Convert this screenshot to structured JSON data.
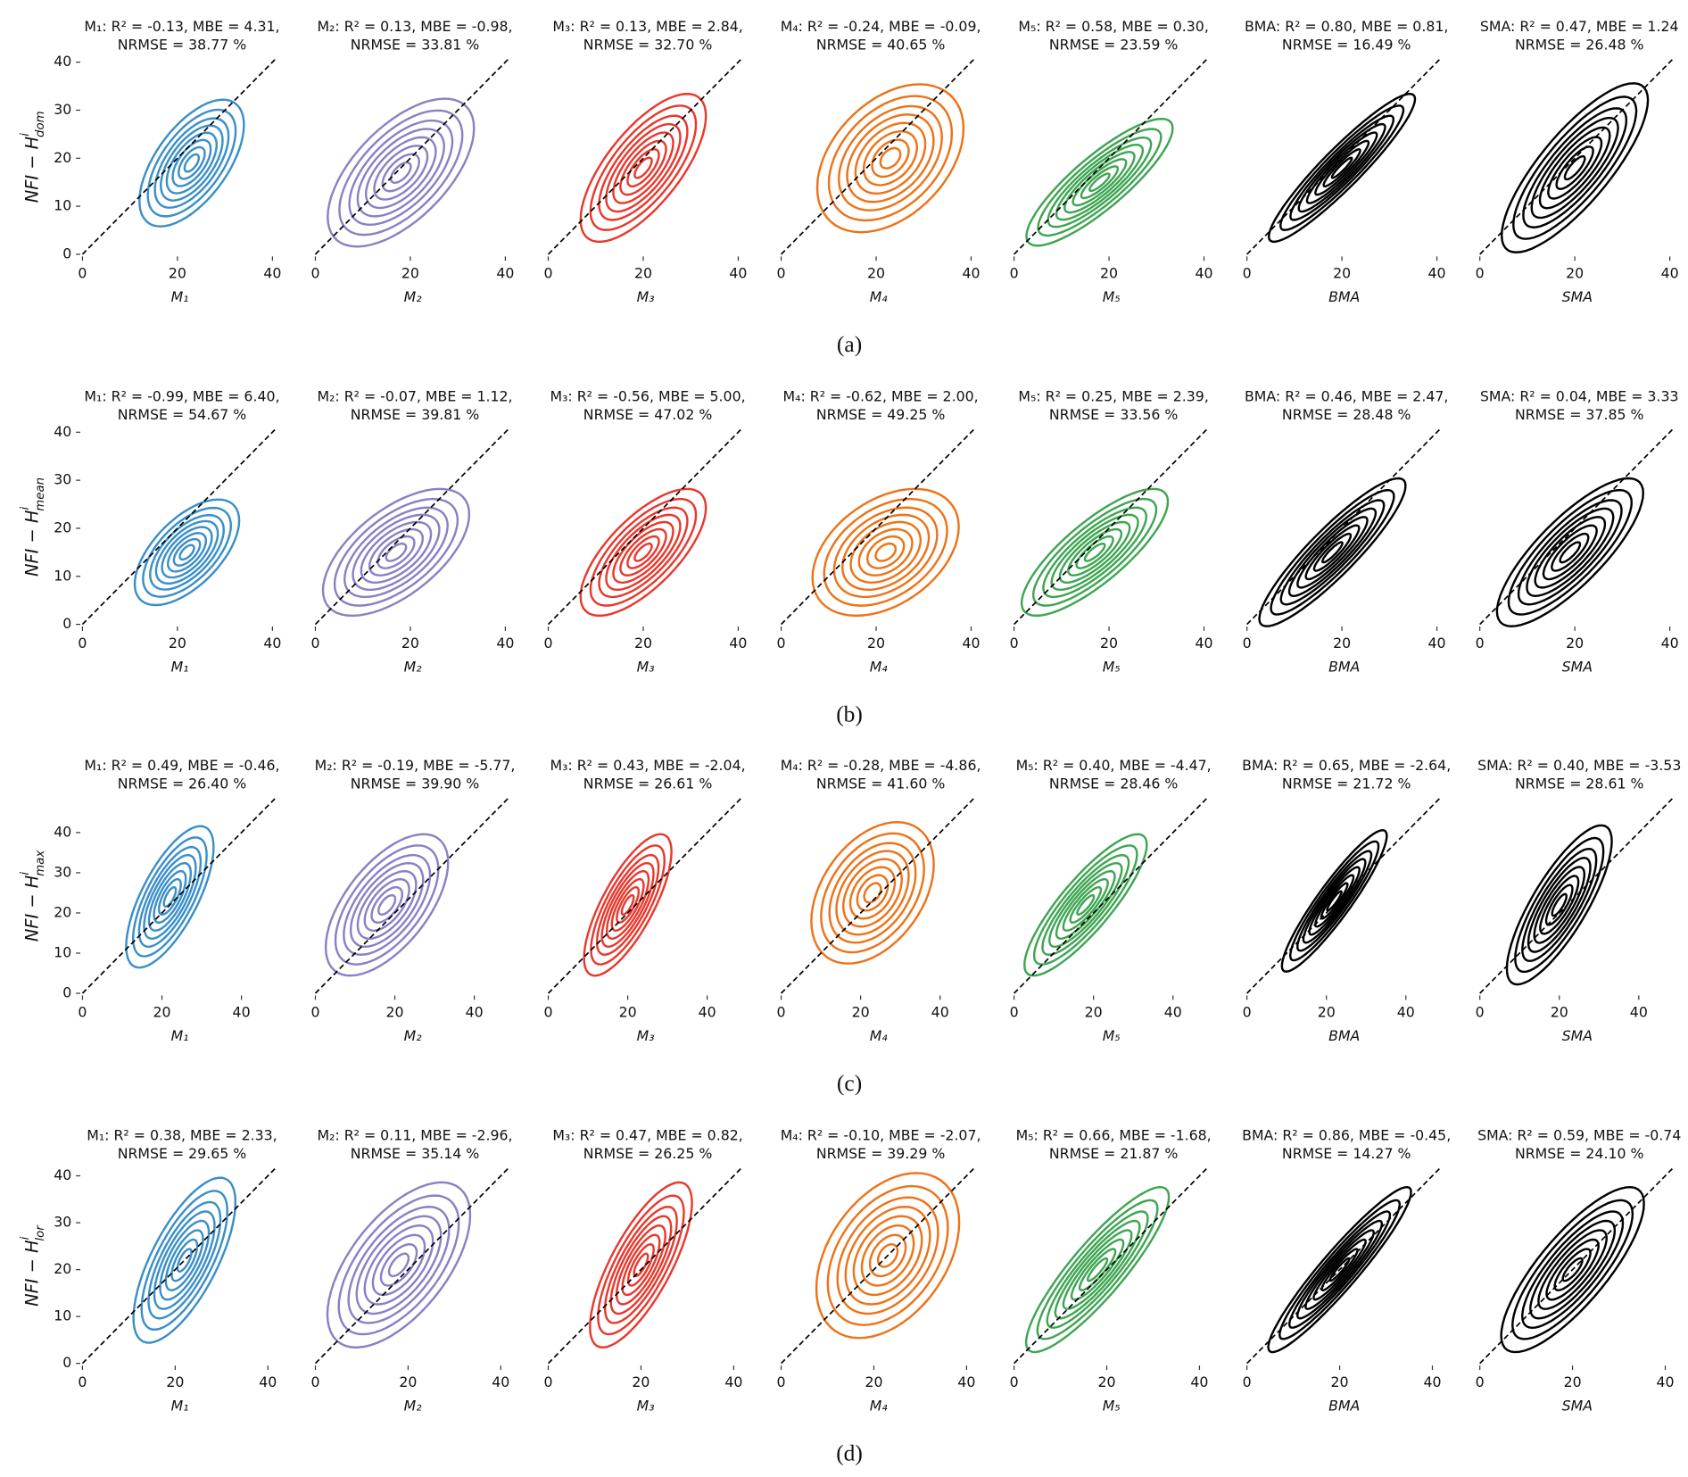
{
  "captions": [
    "(a)",
    "(b)",
    "(c)",
    "(d)"
  ],
  "chart_data": [
    {
      "type": "kde",
      "title": [
        "M₁: R² = -0.13, MBE = 4.31,",
        "NRMSE = 38.77 %"
      ],
      "xlabel": "M₁",
      "ylabel": {
        "text": "NFI − H",
        "sup": "i",
        "sub": "dom"
      },
      "xlim": [
        0,
        41
      ],
      "ylim": [
        0,
        41
      ],
      "xticks": [
        0,
        20,
        40
      ],
      "yticks": [
        0,
        10,
        20,
        30,
        40
      ],
      "color": "#3a8fc8",
      "density": {
        "mean": [
          23,
          19
        ],
        "sd": [
          5,
          6
        ],
        "corr": 0.6
      }
    },
    {
      "type": "kde",
      "title": [
        "M₂: R² = 0.13, MBE = -0.98,",
        "NRMSE = 33.81 %"
      ],
      "xlabel": "M₂",
      "xlim": [
        0,
        41
      ],
      "ylim": [
        0,
        41
      ],
      "xticks": [
        0,
        20,
        40
      ],
      "color": "#8c7fc4",
      "density": {
        "mean": [
          18,
          17
        ],
        "sd": [
          7,
          7
        ],
        "corr": 0.6
      }
    },
    {
      "type": "kde",
      "title": [
        "M₃: R² = 0.13, MBE = 2.84,",
        "NRMSE = 32.70 %"
      ],
      "xlabel": "M₃",
      "xlim": [
        0,
        41
      ],
      "ylim": [
        0,
        41
      ],
      "xticks": [
        0,
        20,
        40
      ],
      "color": "#e8382d",
      "density": {
        "mean": [
          20,
          18
        ],
        "sd": [
          6,
          7
        ],
        "corr": 0.7
      }
    },
    {
      "type": "kde",
      "title": [
        "M₄: R² = -0.24, MBE = -0.09,",
        "NRMSE = 40.65 %"
      ],
      "xlabel": "M₄",
      "xlim": [
        0,
        41
      ],
      "ylim": [
        0,
        41
      ],
      "xticks": [
        0,
        20,
        40
      ],
      "color": "#ee7217",
      "density": {
        "mean": [
          23,
          20
        ],
        "sd": [
          7,
          7
        ],
        "corr": 0.4
      }
    },
    {
      "type": "kde",
      "title": [
        "M₅: R² = 0.58, MBE = 0.30,",
        "NRMSE = 23.59 %"
      ],
      "xlabel": "M₅",
      "xlim": [
        0,
        41
      ],
      "ylim": [
        0,
        41
      ],
      "xticks": [
        0,
        20,
        40
      ],
      "color": "#3ea552",
      "density": {
        "mean": [
          18,
          15
        ],
        "sd": [
          7,
          6
        ],
        "corr": 0.85
      }
    },
    {
      "type": "kde",
      "title": [
        "BMA: R² = 0.80, MBE = 0.81,",
        "NRMSE = 16.49 %"
      ],
      "xlabel": "BMA",
      "xlim": [
        0,
        41
      ],
      "ylim": [
        0,
        41
      ],
      "xticks": [
        0,
        20,
        40
      ],
      "color": "#000000",
      "density": {
        "mean": [
          20,
          18
        ],
        "sd": [
          7,
          7
        ],
        "corr": 0.93
      }
    },
    {
      "type": "kde",
      "title": [
        "SMA: R² = 0.47, MBE = 1.24",
        "NRMSE = 26.48 %"
      ],
      "xlabel": "SMA",
      "xlim": [
        0,
        41
      ],
      "ylim": [
        0,
        41
      ],
      "xticks": [
        0,
        20,
        40
      ],
      "color": "#000000",
      "density": {
        "mean": [
          20,
          18
        ],
        "sd": [
          7,
          8
        ],
        "corr": 0.8
      }
    },
    {
      "type": "kde",
      "title": [
        "M₁: R² = -0.99, MBE = 6.40,",
        "NRMSE = 54.67 %"
      ],
      "xlabel": "M₁",
      "ylabel": {
        "text": "NFI − H",
        "sup": "i",
        "sub": "mean"
      },
      "xlim": [
        0,
        41
      ],
      "ylim": [
        0,
        41
      ],
      "xticks": [
        0,
        20,
        40
      ],
      "yticks": [
        0,
        10,
        20,
        30,
        40
      ],
      "color": "#3a8fc8",
      "density": {
        "mean": [
          22,
          15
        ],
        "sd": [
          5,
          5
        ],
        "corr": 0.6
      }
    },
    {
      "type": "kde",
      "title": [
        "M₂: R² = -0.07, MBE = 1.12,",
        "NRMSE = 39.81 %"
      ],
      "xlabel": "M₂",
      "xlim": [
        0,
        41
      ],
      "ylim": [
        0,
        41
      ],
      "xticks": [
        0,
        20,
        40
      ],
      "color": "#8c7fc4",
      "density": {
        "mean": [
          17,
          15
        ],
        "sd": [
          7,
          6
        ],
        "corr": 0.6
      }
    },
    {
      "type": "kde",
      "title": [
        "M₃: R² = -0.56, MBE = 5.00,",
        "NRMSE = 47.02 %"
      ],
      "xlabel": "M₃",
      "xlim": [
        0,
        41
      ],
      "ylim": [
        0,
        41
      ],
      "xticks": [
        0,
        20,
        40
      ],
      "color": "#e8382d",
      "density": {
        "mean": [
          20,
          15
        ],
        "sd": [
          6,
          6
        ],
        "corr": 0.7
      }
    },
    {
      "type": "kde",
      "title": [
        "M₄: R² = -0.62, MBE = 2.00,",
        "NRMSE = 49.25 %"
      ],
      "xlabel": "M₄",
      "xlim": [
        0,
        41
      ],
      "ylim": [
        0,
        41
      ],
      "xticks": [
        0,
        20,
        40
      ],
      "color": "#ee7217",
      "density": {
        "mean": [
          22,
          15
        ],
        "sd": [
          7,
          6
        ],
        "corr": 0.4
      }
    },
    {
      "type": "kde",
      "title": [
        "M₅: R² = 0.25, MBE = 2.39,",
        "NRMSE = 33.56 %"
      ],
      "xlabel": "M₅",
      "xlim": [
        0,
        41
      ],
      "ylim": [
        0,
        41
      ],
      "xticks": [
        0,
        20,
        40
      ],
      "color": "#3ea552",
      "density": {
        "mean": [
          17,
          15
        ],
        "sd": [
          7,
          6
        ],
        "corr": 0.8
      }
    },
    {
      "type": "kde",
      "title": [
        "BMA: R² = 0.46, MBE = 2.47,",
        "NRMSE = 28.48 %"
      ],
      "xlabel": "BMA",
      "xlim": [
        0,
        41
      ],
      "ylim": [
        0,
        41
      ],
      "xticks": [
        0,
        20,
        40
      ],
      "color": "#000000",
      "density": {
        "mean": [
          18,
          15
        ],
        "sd": [
          7,
          7
        ],
        "corr": 0.9
      }
    },
    {
      "type": "kde",
      "title": [
        "SMA: R² = 0.04, MBE = 3.33",
        "NRMSE = 37.85 %"
      ],
      "xlabel": "SMA",
      "xlim": [
        0,
        41
      ],
      "ylim": [
        0,
        41
      ],
      "xticks": [
        0,
        20,
        40
      ],
      "color": "#000000",
      "density": {
        "mean": [
          19,
          15
        ],
        "sd": [
          7,
          7
        ],
        "corr": 0.8
      }
    },
    {
      "type": "kde",
      "title": [
        "M₁: R² = 0.49, MBE = -0.46,",
        "NRMSE = 26.40 %"
      ],
      "xlabel": "M₁",
      "ylabel": {
        "text": "NFI − H",
        "sup": "i",
        "sub": "max"
      },
      "xlim": [
        0,
        49
      ],
      "ylim": [
        0,
        49
      ],
      "xticks": [
        0,
        20,
        40
      ],
      "yticks": [
        0,
        10,
        20,
        30,
        40
      ],
      "color": "#3a8fc8",
      "density": {
        "mean": [
          22,
          24
        ],
        "sd": [
          5,
          8
        ],
        "corr": 0.7
      }
    },
    {
      "type": "kde",
      "title": [
        "M₂: R² = -0.19, MBE = -5.77,",
        "NRMSE = 39.90 %"
      ],
      "xlabel": "M₂",
      "xlim": [
        0,
        49
      ],
      "ylim": [
        0,
        49
      ],
      "xticks": [
        0,
        20,
        40
      ],
      "color": "#8c7fc4",
      "density": {
        "mean": [
          18,
          22
        ],
        "sd": [
          7,
          8
        ],
        "corr": 0.6
      }
    },
    {
      "type": "kde",
      "title": [
        "M₃: R² = 0.43, MBE = -2.04,",
        "NRMSE = 26.61 %"
      ],
      "xlabel": "M₃",
      "xlim": [
        0,
        49
      ],
      "ylim": [
        0,
        49
      ],
      "xticks": [
        0,
        20,
        40
      ],
      "color": "#e8382d",
      "density": {
        "mean": [
          20,
          22
        ],
        "sd": [
          5,
          8
        ],
        "corr": 0.75
      }
    },
    {
      "type": "kde",
      "title": [
        "M₄: R² = -0.28, MBE = -4.86,",
        "NRMSE = 41.60 %"
      ],
      "xlabel": "M₄",
      "xlim": [
        0,
        49
      ],
      "ylim": [
        0,
        49
      ],
      "xticks": [
        0,
        20,
        40
      ],
      "color": "#ee7217",
      "density": {
        "mean": [
          23,
          25
        ],
        "sd": [
          7,
          8
        ],
        "corr": 0.4
      }
    },
    {
      "type": "kde",
      "title": [
        "M₅: R² = 0.40, MBE = -4.47,",
        "NRMSE = 28.46 %"
      ],
      "xlabel": "M₅",
      "xlim": [
        0,
        49
      ],
      "ylim": [
        0,
        49
      ],
      "xticks": [
        0,
        20,
        40
      ],
      "color": "#3ea552",
      "density": {
        "mean": [
          18,
          22
        ],
        "sd": [
          7,
          8
        ],
        "corr": 0.85
      }
    },
    {
      "type": "kde",
      "title": [
        "BMA: R² = 0.65, MBE = -2.64,",
        "NRMSE = 21.72 %"
      ],
      "xlabel": "BMA",
      "xlim": [
        0,
        49
      ],
      "ylim": [
        0,
        49
      ],
      "xticks": [
        0,
        20,
        40
      ],
      "color": "#000000",
      "density": {
        "mean": [
          22,
          23
        ],
        "sd": [
          6,
          8
        ],
        "corr": 0.92
      }
    },
    {
      "type": "kde",
      "title": [
        "SMA: R² = 0.40, MBE = -3.53",
        "NRMSE = 28.61 %"
      ],
      "xlabel": "SMA",
      "xlim": [
        0,
        49
      ],
      "ylim": [
        0,
        49
      ],
      "xticks": [
        0,
        20,
        40
      ],
      "color": "#000000",
      "density": {
        "mean": [
          20,
          22
        ],
        "sd": [
          6,
          9
        ],
        "corr": 0.8
      }
    },
    {
      "type": "kde",
      "title": [
        "M₁: R² = 0.38, MBE = 2.33,",
        "NRMSE = 29.65 %"
      ],
      "xlabel": "M₁",
      "ylabel": {
        "text": "NFI − H",
        "sup": "i",
        "sub": "lor"
      },
      "xlim": [
        0,
        42
      ],
      "ylim": [
        0,
        42
      ],
      "xticks": [
        0,
        20,
        40
      ],
      "yticks": [
        0,
        10,
        20,
        30,
        40
      ],
      "color": "#3a8fc8",
      "density": {
        "mean": [
          22,
          22
        ],
        "sd": [
          5,
          8
        ],
        "corr": 0.7
      }
    },
    {
      "type": "kde",
      "title": [
        "M₂: R² = 0.11, MBE = -2.96,",
        "NRMSE = 35.14 %"
      ],
      "xlabel": "M₂",
      "xlim": [
        0,
        42
      ],
      "ylim": [
        0,
        42
      ],
      "xticks": [
        0,
        20,
        40
      ],
      "color": "#8c7fc4",
      "density": {
        "mean": [
          18,
          21
        ],
        "sd": [
          7,
          8
        ],
        "corr": 0.6
      }
    },
    {
      "type": "kde",
      "title": [
        "M₃: R² = 0.47, MBE = 0.82,",
        "NRMSE = 26.25 %"
      ],
      "xlabel": "M₃",
      "xlim": [
        0,
        42
      ],
      "ylim": [
        0,
        42
      ],
      "xticks": [
        0,
        20,
        40
      ],
      "color": "#e8382d",
      "density": {
        "mean": [
          20,
          21
        ],
        "sd": [
          5,
          8
        ],
        "corr": 0.75
      }
    },
    {
      "type": "kde",
      "title": [
        "M₄: R² = -0.10, MBE = -2.07,",
        "NRMSE = 39.29 %"
      ],
      "xlabel": "M₄",
      "xlim": [
        0,
        42
      ],
      "ylim": [
        0,
        42
      ],
      "xticks": [
        0,
        20,
        40
      ],
      "color": "#ee7217",
      "density": {
        "mean": [
          23,
          23
        ],
        "sd": [
          7,
          8
        ],
        "corr": 0.4
      }
    },
    {
      "type": "kde",
      "title": [
        "M₅: R² = 0.66, MBE = -1.68,",
        "NRMSE = 21.87 %"
      ],
      "xlabel": "M₅",
      "xlim": [
        0,
        42
      ],
      "ylim": [
        0,
        42
      ],
      "xticks": [
        0,
        20,
        40
      ],
      "color": "#3ea552",
      "density": {
        "mean": [
          18,
          20
        ],
        "sd": [
          7,
          8
        ],
        "corr": 0.88
      }
    },
    {
      "type": "kde",
      "title": [
        "BMA: R² = 0.86, MBE = -0.45,",
        "NRMSE = 14.27 %"
      ],
      "xlabel": "BMA",
      "xlim": [
        0,
        42
      ],
      "ylim": [
        0,
        42
      ],
      "xticks": [
        0,
        20,
        40
      ],
      "color": "#000000",
      "density": {
        "mean": [
          20,
          20
        ],
        "sd": [
          7,
          8
        ],
        "corr": 0.94
      }
    },
    {
      "type": "kde",
      "title": [
        "SMA: R² = 0.59, MBE = -0.74",
        "NRMSE = 24.10 %"
      ],
      "xlabel": "SMA",
      "xlim": [
        0,
        42
      ],
      "ylim": [
        0,
        42
      ],
      "xticks": [
        0,
        20,
        40
      ],
      "color": "#000000",
      "density": {
        "mean": [
          20,
          20
        ],
        "sd": [
          7,
          8
        ],
        "corr": 0.8
      }
    }
  ]
}
